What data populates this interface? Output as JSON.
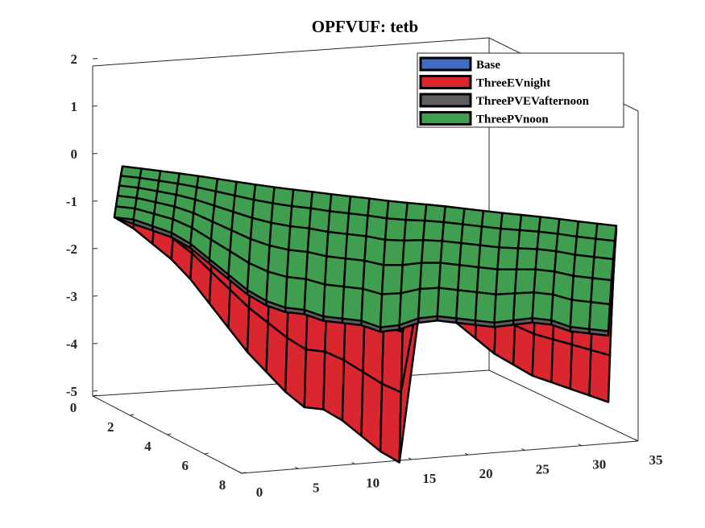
{
  "chart_data": {
    "type": "surface",
    "title": "OPFVUF: tetb",
    "xlabel": "",
    "ylabel": "",
    "zlabel": "",
    "x_axis": {
      "ticks": [
        0,
        5,
        10,
        15,
        20,
        25,
        30,
        35
      ],
      "lim": [
        0,
        35
      ]
    },
    "y_axis": {
      "ticks": [
        0,
        2,
        4,
        6,
        8
      ],
      "lim": [
        0,
        8
      ]
    },
    "z_axis": {
      "ticks": [
        2,
        1,
        0,
        -1,
        -2,
        -3,
        -4,
        -5
      ],
      "lim": [
        -5,
        2
      ]
    },
    "grid": false,
    "legend_location": "top-right",
    "series": [
      {
        "name": "Base",
        "color": "#3F6BC2",
        "front_values": [
          -0.2,
          -0.4,
          -0.7,
          -1.0,
          -1.4,
          -1.9,
          -2.4,
          -2.9,
          -3.3,
          -3.7,
          -4.0,
          -4.0,
          -4.2,
          -4.5,
          -4.8,
          -5.0,
          -1.7,
          -1.6,
          -1.7,
          -2.0,
          -2.3,
          -2.5,
          -2.7,
          -2.8,
          -2.9,
          -3.0,
          -3.1
        ]
      },
      {
        "name": "ThreeEVnight",
        "color": "#D9262F",
        "front_values": [
          -0.2,
          -0.4,
          -0.7,
          -1.0,
          -1.4,
          -1.9,
          -2.4,
          -2.9,
          -3.3,
          -3.7,
          -4.0,
          -4.0,
          -4.2,
          -4.5,
          -4.8,
          -5.0,
          -1.7,
          -1.6,
          -1.7,
          -2.0,
          -2.3,
          -2.5,
          -2.7,
          -2.8,
          -2.9,
          -3.0,
          -3.1
        ]
      },
      {
        "name": "ThreePVEVafternoon",
        "color": "#5E5E5E",
        "front_values": [
          -0.2,
          -0.3,
          -0.4,
          -0.5,
          -0.7,
          -1.0,
          -1.3,
          -1.6,
          -1.8,
          -1.9,
          -1.9,
          -2.0,
          -2.0,
          -2.0,
          -2.1,
          -2.0,
          -1.8,
          -1.7,
          -1.7,
          -1.7,
          -1.7,
          -1.6,
          -1.5,
          -1.5,
          -1.6,
          -1.6,
          -1.6
        ]
      },
      {
        "name": "ThreePVnoon",
        "color": "#3F9E4F",
        "front_values": [
          -0.2,
          -0.2,
          -0.3,
          -0.4,
          -0.6,
          -0.9,
          -1.2,
          -1.5,
          -1.7,
          -1.8,
          -1.8,
          -1.9,
          -1.9,
          -1.9,
          -2.0,
          -1.9,
          -1.7,
          -1.6,
          -1.6,
          -1.6,
          -1.6,
          -1.5,
          -1.4,
          -1.4,
          -1.5,
          -1.5,
          -1.5
        ]
      }
    ]
  }
}
